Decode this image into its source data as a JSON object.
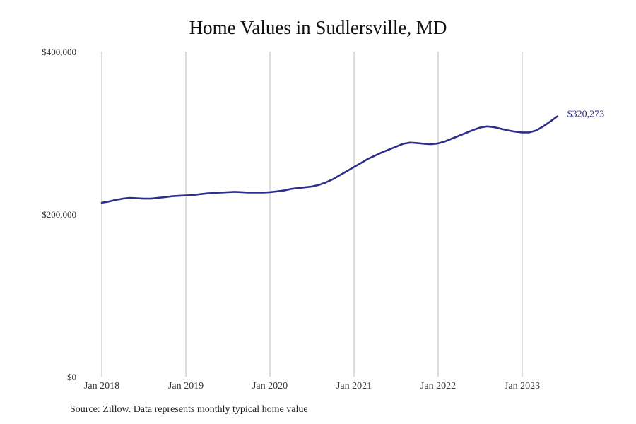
{
  "chart_data": {
    "type": "line",
    "title": "Home Values in Sudlersville, MD",
    "xlabel": "",
    "ylabel": "",
    "ylim": [
      0,
      400000
    ],
    "y_ticks": [
      "$0",
      "$200,000",
      "$400,000"
    ],
    "x_ticks": [
      "Jan 2018",
      "Jan 2019",
      "Jan 2020",
      "Jan 2021",
      "Jan 2022",
      "Jan 2023"
    ],
    "grid": "vertical",
    "line_color": "#2e2e8a",
    "end_value_label": "$320,273",
    "series": [
      {
        "values": [
          [
            "2018-01",
            214000
          ],
          [
            "2018-02",
            215500
          ],
          [
            "2018-03",
            217500
          ],
          [
            "2018-04",
            219000
          ],
          [
            "2018-05",
            220000
          ],
          [
            "2018-06",
            219500
          ],
          [
            "2018-07",
            219000
          ],
          [
            "2018-08",
            219000
          ],
          [
            "2018-09",
            220000
          ],
          [
            "2018-10",
            221000
          ],
          [
            "2018-11",
            222000
          ],
          [
            "2018-12",
            222500
          ],
          [
            "2019-01",
            223000
          ],
          [
            "2019-02",
            223500
          ],
          [
            "2019-03",
            224500
          ],
          [
            "2019-04",
            225500
          ],
          [
            "2019-05",
            226000
          ],
          [
            "2019-06",
            226500
          ],
          [
            "2019-07",
            227000
          ],
          [
            "2019-08",
            227500
          ],
          [
            "2019-09",
            227000
          ],
          [
            "2019-10",
            226500
          ],
          [
            "2019-11",
            226500
          ],
          [
            "2019-12",
            226500
          ],
          [
            "2020-01",
            227000
          ],
          [
            "2020-02",
            228000
          ],
          [
            "2020-03",
            229000
          ],
          [
            "2020-04",
            231000
          ],
          [
            "2020-05",
            232000
          ],
          [
            "2020-06",
            233000
          ],
          [
            "2020-07",
            234000
          ],
          [
            "2020-08",
            236000
          ],
          [
            "2020-09",
            239000
          ],
          [
            "2020-10",
            243000
          ],
          [
            "2020-11",
            248000
          ],
          [
            "2020-12",
            253000
          ],
          [
            "2021-01",
            258000
          ],
          [
            "2021-02",
            263000
          ],
          [
            "2021-03",
            268000
          ],
          [
            "2021-04",
            272000
          ],
          [
            "2021-05",
            276000
          ],
          [
            "2021-06",
            279500
          ],
          [
            "2021-07",
            283000
          ],
          [
            "2021-08",
            286500
          ],
          [
            "2021-09",
            288000
          ],
          [
            "2021-10",
            287500
          ],
          [
            "2021-11",
            286500
          ],
          [
            "2021-12",
            286000
          ],
          [
            "2022-01",
            287000
          ],
          [
            "2022-02",
            289500
          ],
          [
            "2022-03",
            293000
          ],
          [
            "2022-04",
            296500
          ],
          [
            "2022-05",
            300000
          ],
          [
            "2022-06",
            303500
          ],
          [
            "2022-07",
            306500
          ],
          [
            "2022-08",
            308000
          ],
          [
            "2022-09",
            307000
          ],
          [
            "2022-10",
            305000
          ],
          [
            "2022-11",
            303000
          ],
          [
            "2022-12",
            301500
          ],
          [
            "2023-01",
            300500
          ],
          [
            "2023-02",
            300500
          ],
          [
            "2023-03",
            303000
          ],
          [
            "2023-04",
            308000
          ],
          [
            "2023-05",
            314000
          ],
          [
            "2023-06",
            320273
          ]
        ]
      }
    ]
  },
  "source_note": "Source: Zillow. Data represents monthly typical home value"
}
